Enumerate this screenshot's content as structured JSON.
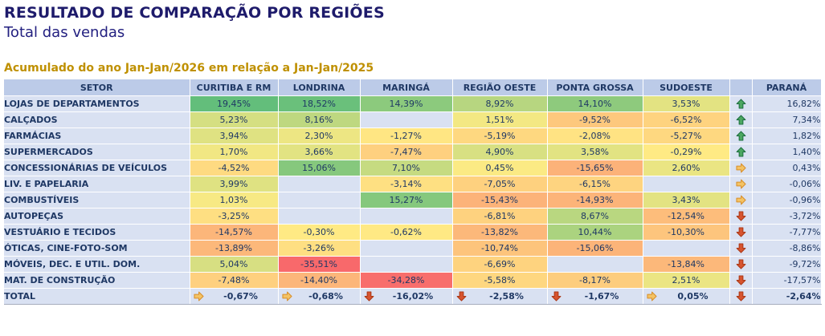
{
  "page": {
    "title": "RESULTADO DE COMPARAÇÃO POR REGIÕES",
    "subtitle": "Total das vendas",
    "period_note": "Acumulado do ano Jan-Jan/2026 em relação a Jan-Jan/2025"
  },
  "colors": {
    "title_text": "#1E1B6B",
    "table_text": "#1F3864",
    "period_text": "#BF9000",
    "header_bg": "#BCCBE8",
    "plain_cell_bg": "#D9E1F2",
    "grid_line": "#FFFFFF",
    "scale_max_green": "#63BE7B",
    "scale_mid_yellow": "#FFEB84",
    "scale_min_red": "#F8696B",
    "arrow_up_fill": "#4CA761",
    "arrow_up_stroke": "#1F7041",
    "arrow_right_fill": "#F4C364",
    "arrow_right_stroke": "#D78F2C",
    "arrow_down_fill": "#D7542F",
    "arrow_down_stroke": "#AC3A18"
  },
  "chart_data": {
    "type": "heatmap",
    "title": "RESULTADO DE COMPARAÇÃO POR REGIÕES",
    "subtitle": "Total das vendas",
    "period": "Acumulado do ano Jan-Jan/2026 em relação a Jan-Jan/2025",
    "value_format": "percent, pt-BR comma decimal",
    "color_scale": {
      "min": -35.51,
      "mid": 0,
      "max": 19.45
    },
    "trend_legend": {
      "up": "green-up-arrow",
      "right": "yellow-right-arrow",
      "down": "red-down-arrow"
    },
    "columns": [
      "SETOR",
      "CURITIBA E RM",
      "LONDRINA",
      "MARINGÁ",
      "REGIÃO OESTE",
      "PONTA GROSSA",
      "SUDOESTE",
      "PARANÁ"
    ],
    "rows": [
      {
        "setor": "LOJAS DE DEPARTAMENTOS",
        "cells": [
          "19,45%",
          "18,52%",
          "14,39%",
          "8,92%",
          "14,10%",
          "3,53%"
        ],
        "trend": "up",
        "parana": "16,82%"
      },
      {
        "setor": "CALÇADOS",
        "cells": [
          "5,23%",
          "8,16%",
          "",
          "1,51%",
          "-9,52%",
          "-6,52%"
        ],
        "trend": "up",
        "parana": "7,34%"
      },
      {
        "setor": "FARMÁCIAS",
        "cells": [
          "3,94%",
          "2,30%",
          "-1,27%",
          "-5,19%",
          "-2,08%",
          "-5,27%"
        ],
        "trend": "up",
        "parana": "1,82%"
      },
      {
        "setor": "SUPERMERCADOS",
        "cells": [
          "1,70%",
          "3,66%",
          "-7,47%",
          "4,90%",
          "3,58%",
          "-0,29%"
        ],
        "trend": "up",
        "parana": "1,40%"
      },
      {
        "setor": "CONCESSIONÁRIAS DE VEÍCULOS",
        "cells": [
          "-4,52%",
          "15,06%",
          "7,10%",
          "0,45%",
          "-15,65%",
          "2,60%"
        ],
        "trend": "right",
        "parana": "0,43%"
      },
      {
        "setor": "LIV. E PAPELARIA",
        "cells": [
          "3,99%",
          "",
          "-3,14%",
          "-7,05%",
          "-6,15%",
          ""
        ],
        "trend": "right",
        "parana": "-0,06%"
      },
      {
        "setor": "COMBUSTÍVEIS",
        "cells": [
          "1,03%",
          "",
          "15,27%",
          "-15,43%",
          "-14,93%",
          "3,43%"
        ],
        "trend": "right",
        "parana": "-0,96%"
      },
      {
        "setor": "AUTOPEÇAS",
        "cells": [
          "-3,25%",
          "",
          "",
          "-6,81%",
          "8,67%",
          "-12,54%"
        ],
        "trend": "down",
        "parana": "-3,72%"
      },
      {
        "setor": "VESTUÁRIO E TECIDOS",
        "cells": [
          "-14,57%",
          "-0,30%",
          "-0,62%",
          "-13,82%",
          "10,44%",
          "-10,30%"
        ],
        "trend": "down",
        "parana": "-7,77%"
      },
      {
        "setor": "ÓTICAS, CINE-FOTO-SOM",
        "cells": [
          "-13,89%",
          "-3,26%",
          "",
          "-10,74%",
          "-15,06%",
          ""
        ],
        "trend": "down",
        "parana": "-8,86%"
      },
      {
        "setor": "MÓVEIS, DEC. E UTIL. DOM.",
        "cells": [
          "5,04%",
          "-35,51%",
          "",
          "-6,69%",
          "",
          "-13,84%"
        ],
        "trend": "down",
        "parana": "-9,72%"
      },
      {
        "setor": "MAT. DE CONSTRUÇÃO",
        "cells": [
          "-7,48%",
          "-14,40%",
          "-34,28%",
          "-5,58%",
          "-8,17%",
          "2,51%"
        ],
        "trend": "down",
        "parana": "-17,57%"
      }
    ],
    "total_row": {
      "setor": "TOTAL",
      "cells": [
        "-0,67%",
        "-0,68%",
        "-16,02%",
        "-2,58%",
        "-1,67%",
        "0,05%"
      ],
      "cell_trends": [
        "right",
        "right",
        "down",
        "down",
        "down",
        "right"
      ],
      "trend": "down",
      "parana": "-2,64%"
    }
  }
}
